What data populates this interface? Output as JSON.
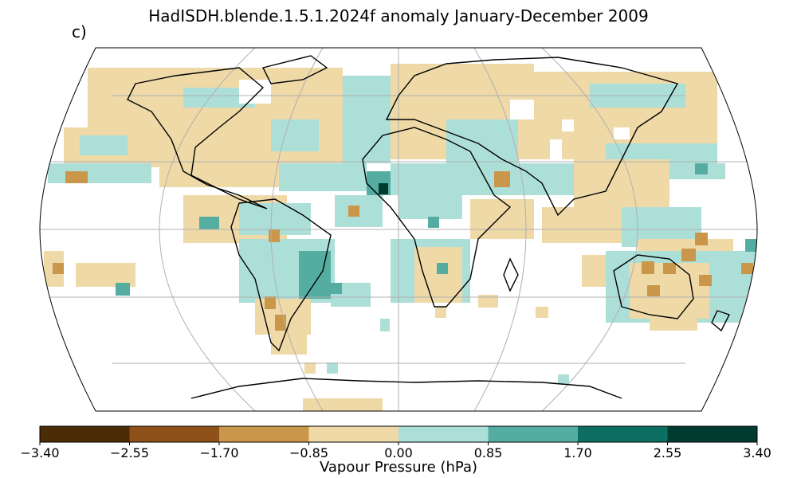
{
  "title": "HadISDH.blende.1.5.1.2024f anomaly January-December 2009",
  "panel_label": "c)",
  "projection": "Robinson",
  "colorbar": {
    "label": "Vapour Pressure (hPa)",
    "ticks": [
      "−3.40",
      "−2.55",
      "−1.70",
      "−0.85",
      "0.00",
      "0.85",
      "1.70",
      "2.55",
      "3.40"
    ],
    "colors": [
      "#4b2c06",
      "#8e5218",
      "#c9964a",
      "#eed9a7",
      "#addfd9",
      "#55ada1",
      "#0d6e62",
      "#013b30"
    ]
  },
  "colors": {
    "coastline": "#000000",
    "gridlines": "#b0b0b0",
    "frame": "#000000"
  }
}
